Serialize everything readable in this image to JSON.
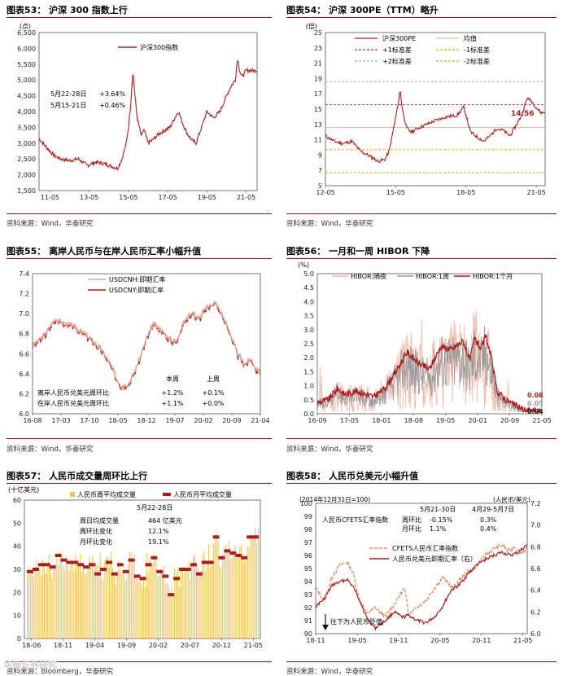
{
  "colors": {
    "red": "#b01c1c",
    "pink": "#f1b9a6",
    "gray": "#9a9a9a",
    "gold": "#f0c24a",
    "lightred": "#e9a08f"
  },
  "panels": [
    {
      "title": "图表53： 沪深 300 指数上行",
      "source": "资料来源：Wind，华泰研究"
    },
    {
      "title": "图表54： 沪深 300PE（TTM）略升",
      "source": "资料来源：Wind，华泰研究"
    },
    {
      "title": "图表55： 离岸人民币与在岸人民币汇率小幅升值",
      "source": "资料来源：Wind，华泰研究"
    },
    {
      "title": "图表56： 一月和一周 HIBOR 下降",
      "source": "资料来源：Wind，华泰研究"
    },
    {
      "title": "图表57： 人民币成交量周环比上行",
      "source": "资料来源：Bloomberg，华泰研究"
    },
    {
      "title": "图表58： 人民币兑美元小幅升值",
      "source": "资料来源：Wind，华泰研究"
    }
  ],
  "watermark": "华泰证券研究",
  "chart_data": [
    {
      "type": "line",
      "title": "沪深300指数",
      "ylabel": "(点)",
      "ylim": [
        1500,
        6500
      ],
      "yticks": [
        "1,500",
        "2,000",
        "2,500",
        "3,000",
        "3,500",
        "4,000",
        "4,500",
        "5,000",
        "5,500",
        "6,000",
        "6,500"
      ],
      "xticks": [
        "11-05",
        "13-05",
        "15-05",
        "17-05",
        "19-05",
        "21-05"
      ],
      "series": [
        {
          "name": "沪深300指数",
          "anchors": [
            [
              0,
              3150
            ],
            [
              0.03,
              2900
            ],
            [
              0.07,
              2600
            ],
            [
              0.1,
              2500
            ],
            [
              0.14,
              2450
            ],
            [
              0.18,
              2500
            ],
            [
              0.22,
              2300
            ],
            [
              0.26,
              2400
            ],
            [
              0.3,
              2350
            ],
            [
              0.34,
              2250
            ],
            [
              0.36,
              2200
            ],
            [
              0.38,
              2500
            ],
            [
              0.4,
              3000
            ],
            [
              0.41,
              3500
            ],
            [
              0.42,
              4200
            ],
            [
              0.43,
              5300
            ],
            [
              0.44,
              4500
            ],
            [
              0.45,
              3800
            ],
            [
              0.46,
              3500
            ],
            [
              0.47,
              3200
            ],
            [
              0.48,
              3450
            ],
            [
              0.5,
              3000
            ],
            [
              0.52,
              3100
            ],
            [
              0.55,
              3300
            ],
            [
              0.6,
              3500
            ],
            [
              0.63,
              3900
            ],
            [
              0.64,
              4000
            ],
            [
              0.66,
              3600
            ],
            [
              0.68,
              3300
            ],
            [
              0.7,
              3100
            ],
            [
              0.72,
              3000
            ],
            [
              0.75,
              3600
            ],
            [
              0.77,
              4000
            ],
            [
              0.8,
              3800
            ],
            [
              0.83,
              4000
            ],
            [
              0.86,
              4500
            ],
            [
              0.88,
              4800
            ],
            [
              0.9,
              5000
            ],
            [
              0.91,
              5700
            ],
            [
              0.92,
              5300
            ],
            [
              0.93,
              5100
            ],
            [
              0.94,
              5200
            ],
            [
              0.95,
              5300
            ]
          ]
        }
      ],
      "annotations": [
        {
          "label": "5月22-28日",
          "value": "+3.64%"
        },
        {
          "label": "5月15-21日",
          "value": "+0.46%"
        }
      ]
    },
    {
      "type": "line",
      "title": "沪深300PE（TTM）",
      "ylabel": "(倍)",
      "ylim": [
        5,
        25
      ],
      "yticks": [
        "5",
        "7",
        "9",
        "11",
        "13",
        "15",
        "17",
        "19",
        "21",
        "23",
        "25"
      ],
      "xticks": [
        "12-05",
        "15-05",
        "18-05",
        "21-05"
      ],
      "series": [
        {
          "name": "沪深300PE",
          "anchors": [
            [
              0,
              11.5
            ],
            [
              0.04,
              10.8
            ],
            [
              0.08,
              10.5
            ],
            [
              0.12,
              10.8
            ],
            [
              0.16,
              9.5
            ],
            [
              0.2,
              8.9
            ],
            [
              0.24,
              8.2
            ],
            [
              0.27,
              8.4
            ],
            [
              0.29,
              9.5
            ],
            [
              0.31,
              12.5
            ],
            [
              0.33,
              15.5
            ],
            [
              0.34,
              17.5
            ],
            [
              0.35,
              15
            ],
            [
              0.37,
              12.5
            ],
            [
              0.39,
              12
            ],
            [
              0.42,
              12.5
            ],
            [
              0.46,
              13
            ],
            [
              0.5,
              13.5
            ],
            [
              0.55,
              14
            ],
            [
              0.6,
              14.2
            ],
            [
              0.63,
              15.3
            ],
            [
              0.66,
              12
            ],
            [
              0.7,
              11.2
            ],
            [
              0.72,
              10.8
            ],
            [
              0.75,
              11.5
            ],
            [
              0.78,
              12.5
            ],
            [
              0.81,
              12.2
            ],
            [
              0.84,
              11.5
            ],
            [
              0.86,
              12.5
            ],
            [
              0.89,
              14
            ],
            [
              0.92,
              16.5
            ],
            [
              0.94,
              16
            ],
            [
              0.96,
              15.2
            ],
            [
              0.98,
              14.56
            ]
          ]
        }
      ],
      "lines": [
        {
          "name": "均值",
          "value": 12.6,
          "style": "solid"
        },
        {
          "name": "+1标准差",
          "value": 15.6,
          "style": "dash"
        },
        {
          "name": "-1标准差",
          "value": 9.7,
          "style": "dash"
        },
        {
          "name": "+2标准差",
          "value": 18.6,
          "style": "dash"
        },
        {
          "name": "-2标准差",
          "value": 6.7,
          "style": "dash"
        }
      ],
      "last_label": "14.56"
    },
    {
      "type": "line",
      "title": "人民币汇率",
      "ylim": [
        6.0,
        7.4
      ],
      "yticks": [
        "6.0",
        "6.2",
        "6.4",
        "6.6",
        "6.8",
        "7.0",
        "7.2",
        "7.4"
      ],
      "xticks": [
        "16-08",
        "17-03",
        "17-10",
        "18-05",
        "18-12",
        "19-07",
        "20-02",
        "20-09",
        "21-04"
      ],
      "series": [
        {
          "name": "USDCNH:即期汇率",
          "anchors": [
            [
              0,
              6.68
            ],
            [
              0.05,
              6.78
            ],
            [
              0.1,
              6.95
            ],
            [
              0.14,
              6.9
            ],
            [
              0.18,
              6.88
            ],
            [
              0.24,
              6.78
            ],
            [
              0.3,
              6.65
            ],
            [
              0.34,
              6.5
            ],
            [
              0.37,
              6.35
            ],
            [
              0.39,
              6.28
            ],
            [
              0.42,
              6.3
            ],
            [
              0.44,
              6.38
            ],
            [
              0.47,
              6.55
            ],
            [
              0.5,
              6.75
            ],
            [
              0.53,
              6.9
            ],
            [
              0.56,
              6.85
            ],
            [
              0.6,
              6.75
            ],
            [
              0.63,
              6.72
            ],
            [
              0.66,
              6.9
            ],
            [
              0.7,
              7.02
            ],
            [
              0.73,
              6.95
            ],
            [
              0.76,
              7.05
            ],
            [
              0.8,
              7.12
            ],
            [
              0.83,
              7.0
            ],
            [
              0.86,
              6.85
            ],
            [
              0.9,
              6.6
            ],
            [
              0.93,
              6.5
            ],
            [
              0.96,
              6.55
            ],
            [
              0.98,
              6.45
            ],
            [
              1,
              6.42
            ]
          ]
        },
        {
          "name": "USDCNY:即期汇率"
        }
      ],
      "table": {
        "headers": [
          "本周",
          "上周"
        ],
        "rows": [
          {
            "label": "离岸人民币兑美元周环比",
            "this": "+1.2%",
            "last": "+0.1%"
          },
          {
            "label": "在岸人民币兑美元周环比",
            "this": "+1.1%",
            "last": "+0.0%"
          }
        ]
      }
    },
    {
      "type": "line",
      "title": "HIBOR",
      "ylabel": "(%)",
      "ylim": [
        0,
        5
      ],
      "yticks": [
        "0.0",
        "0.5",
        "1.0",
        "1.5",
        "2.0",
        "2.5",
        "3.0",
        "3.5",
        "4.0",
        "4.5",
        "5.0"
      ],
      "xticks": [
        "16-09",
        "17-05",
        "18-01",
        "18-08",
        "19-05",
        "20-01",
        "20-09",
        "21-05"
      ],
      "series": [
        {
          "name": "HIBOR:隔夜"
        },
        {
          "name": "HIBOR:1周"
        },
        {
          "name": "HIBOR:1个月",
          "anchors": [
            [
              0,
              0.4
            ],
            [
              0.05,
              0.5
            ],
            [
              0.09,
              0.9
            ],
            [
              0.12,
              0.7
            ],
            [
              0.18,
              0.8
            ],
            [
              0.25,
              0.6
            ],
            [
              0.3,
              0.9
            ],
            [
              0.35,
              1.5
            ],
            [
              0.4,
              2.2
            ],
            [
              0.45,
              1.8
            ],
            [
              0.5,
              1.6
            ],
            [
              0.55,
              2.4
            ],
            [
              0.6,
              2.3
            ],
            [
              0.65,
              2.6
            ],
            [
              0.68,
              1.9
            ],
            [
              0.7,
              2.7
            ],
            [
              0.73,
              2.3
            ],
            [
              0.75,
              2.8
            ],
            [
              0.78,
              1.8
            ],
            [
              0.8,
              0.8
            ],
            [
              0.84,
              0.5
            ],
            [
              0.88,
              0.3
            ],
            [
              0.92,
              0.15
            ],
            [
              0.96,
              0.1
            ],
            [
              1,
              0.08
            ]
          ]
        }
      ],
      "last_labels": [
        "0.08",
        "0.05",
        "0.04"
      ]
    },
    {
      "type": "bar",
      "title": "人民币成交量",
      "ylabel": "(十亿美元)",
      "ylim": [
        0,
        60
      ],
      "yticks": [
        "0",
        "10",
        "20",
        "30",
        "40",
        "50",
        "60"
      ],
      "xticks": [
        "18-06",
        "18-11",
        "19-04",
        "19-09",
        "20-02",
        "20-07",
        "20-12",
        "21-05"
      ],
      "series": [
        {
          "name": "人民币周平均成交量"
        },
        {
          "name": "人民币月平均成交量",
          "values": [
            29,
            30,
            32,
            32,
            31,
            36,
            34,
            33,
            33,
            32,
            31,
            32,
            28,
            30,
            33,
            28,
            32,
            29,
            34,
            27,
            26,
            32,
            35,
            29,
            27,
            19,
            26,
            30,
            30,
            32,
            28,
            33,
            33,
            44,
            35,
            38,
            37,
            36,
            35,
            44,
            44
          ]
        }
      ],
      "notes": {
        "date": "5月22-28日",
        "rows": [
          {
            "label": "周日均成交量",
            "value": "464 亿美元"
          },
          {
            "label": "周环比变化",
            "value": "12.1%"
          },
          {
            "label": "月环比变化",
            "value": "19.1%"
          }
        ]
      }
    },
    {
      "type": "line",
      "title": "人民币兑美元",
      "ylabel_left": "(2014年12月31日=100)",
      "ylabel_right": "(人民币/美元)",
      "ylim": [
        90,
        100
      ],
      "ylim_right": [
        6.0,
        7.2
      ],
      "yticks": [
        "90",
        "91",
        "92",
        "93",
        "94",
        "95",
        "96",
        "97",
        "98",
        "99",
        "100"
      ],
      "yticks_right": [
        "6.0",
        "6.2",
        "6.4",
        "6.6",
        "6.8",
        "7.0",
        "7.2"
      ],
      "xticks": [
        "18-11",
        "19-05",
        "19-11",
        "20-05",
        "20-11",
        "21-05"
      ],
      "series": [
        {
          "name": "CFETS人民币汇率指数",
          "anchors": [
            [
              0,
              93.5
            ],
            [
              0.04,
              92.5
            ],
            [
              0.08,
              94.5
            ],
            [
              0.12,
              95.3
            ],
            [
              0.15,
              95.5
            ],
            [
              0.18,
              94.5
            ],
            [
              0.2,
              93
            ],
            [
              0.24,
              91.5
            ],
            [
              0.28,
              92
            ],
            [
              0.33,
              91.3
            ],
            [
              0.38,
              92.5
            ],
            [
              0.42,
              93.5
            ],
            [
              0.44,
              91.5
            ],
            [
              0.47,
              92
            ],
            [
              0.52,
              92.5
            ],
            [
              0.56,
              93.5
            ],
            [
              0.6,
              94.3
            ],
            [
              0.65,
              93.5
            ],
            [
              0.7,
              94.5
            ],
            [
              0.75,
              95
            ],
            [
              0.8,
              96
            ],
            [
              0.84,
              96.5
            ],
            [
              0.88,
              96.8
            ],
            [
              0.91,
              96.3
            ],
            [
              0.94,
              96.7
            ],
            [
              0.97,
              96.2
            ],
            [
              1,
              96.6
            ]
          ]
        },
        {
          "name": "人民币兑美元即期汇率（右）",
          "anchors": [
            [
              0,
              6.95
            ],
            [
              0.04,
              6.88
            ],
            [
              0.08,
              6.75
            ],
            [
              0.12,
              6.72
            ],
            [
              0.15,
              6.7
            ],
            [
              0.18,
              6.78
            ],
            [
              0.21,
              6.9
            ],
            [
              0.24,
              7.05
            ],
            [
              0.28,
              7.15
            ],
            [
              0.33,
              7.08
            ],
            [
              0.37,
              7.0
            ],
            [
              0.41,
              7.05
            ],
            [
              0.44,
              7.03
            ],
            [
              0.48,
              7.08
            ],
            [
              0.52,
              7.1
            ],
            [
              0.56,
              7.05
            ],
            [
              0.6,
              6.95
            ],
            [
              0.64,
              6.8
            ],
            [
              0.68,
              6.75
            ],
            [
              0.72,
              6.65
            ],
            [
              0.76,
              6.57
            ],
            [
              0.8,
              6.52
            ],
            [
              0.84,
              6.48
            ],
            [
              0.88,
              6.45
            ],
            [
              0.92,
              6.48
            ],
            [
              0.96,
              6.45
            ],
            [
              1,
              6.38
            ]
          ]
        }
      ],
      "table": {
        "headers": [
          "5月21-30日",
          "4月29-5月7日"
        ],
        "rows": [
          {
            "label": "人民币CFETS汇率指数",
            "this": "",
            "last": ""
          },
          {
            "label": "周环比",
            "this": "-0.15%",
            "last": "0.3%"
          },
          {
            "label": "月环比",
            "this": "1.1%",
            "last": "0.4%"
          }
        ]
      },
      "arrow_label": "往下为人民币贬值"
    }
  ]
}
